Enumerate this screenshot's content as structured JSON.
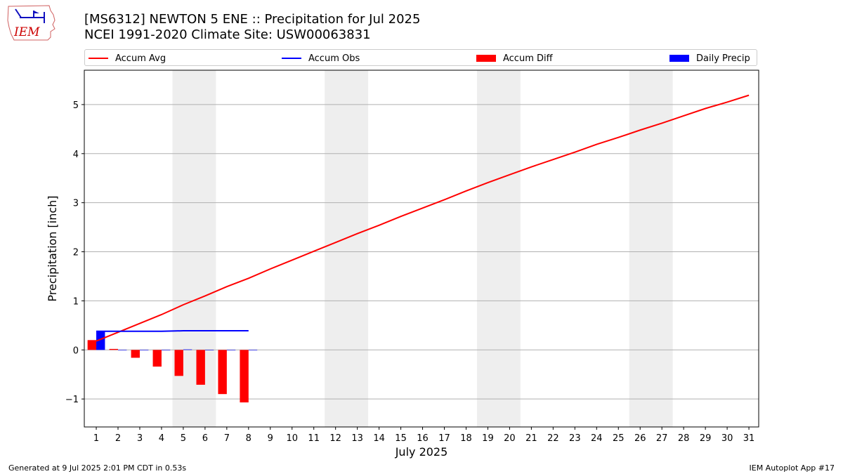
{
  "header": {
    "title_line1": "[MS6312] NEWTON 5 ENE :: Precipitation for Jul 2025",
    "title_line2": "NCEI 1991-2020 Climate Site: USW00063831"
  },
  "logo": {
    "text": "IEM",
    "icon": "iem-iowa-map-logo"
  },
  "legend": [
    {
      "label": "Accum Avg",
      "kind": "line",
      "color": "#ff0000"
    },
    {
      "label": "Accum Obs",
      "kind": "line",
      "color": "#0000ff"
    },
    {
      "label": "Accum Diff",
      "kind": "patch",
      "color": "#ff0000"
    },
    {
      "label": "Daily Precip",
      "kind": "patch",
      "color": "#0000ff"
    }
  ],
  "footer": {
    "left": "Generated at 9 Jul 2025 2:01 PM CDT in 0.53s",
    "right": "IEM Autoplot App #17"
  },
  "chart_data": {
    "type": "bar",
    "xlabel": "July 2025",
    "ylabel": "Precipitation [inch]",
    "xlim": [
      0.45,
      31.45
    ],
    "ylim": [
      -1.57,
      5.7
    ],
    "yticks": [
      -1,
      0,
      1,
      2,
      3,
      4,
      5
    ],
    "ytick_labels": [
      "−1",
      "0",
      "1",
      "2",
      "3",
      "4",
      "5"
    ],
    "xticks": [
      1,
      2,
      3,
      4,
      5,
      6,
      7,
      8,
      9,
      10,
      11,
      12,
      13,
      14,
      15,
      16,
      17,
      18,
      19,
      20,
      21,
      22,
      23,
      24,
      25,
      26,
      27,
      28,
      29,
      30,
      31
    ],
    "grid": "horizontal",
    "legend_position": "top",
    "weekend_shading": [
      [
        4.5,
        6.5
      ],
      [
        11.5,
        13.5
      ],
      [
        18.5,
        20.5
      ],
      [
        25.5,
        27.5
      ]
    ],
    "series": [
      {
        "name": "Accum Avg",
        "type": "line",
        "color": "#ff0000",
        "x": [
          1,
          2,
          3,
          4,
          5,
          6,
          7,
          8,
          9,
          10,
          11,
          12,
          13,
          14,
          15,
          16,
          17,
          18,
          19,
          20,
          21,
          22,
          23,
          24,
          25,
          26,
          27,
          28,
          29,
          30,
          31
        ],
        "values": [
          0.18,
          0.36,
          0.54,
          0.72,
          0.92,
          1.1,
          1.29,
          1.46,
          1.65,
          1.83,
          2.01,
          2.19,
          2.37,
          2.54,
          2.72,
          2.89,
          3.06,
          3.24,
          3.41,
          3.57,
          3.73,
          3.88,
          4.03,
          4.19,
          4.33,
          4.48,
          4.62,
          4.77,
          4.92,
          5.05,
          5.19
        ]
      },
      {
        "name": "Accum Obs",
        "type": "line",
        "color": "#0000ff",
        "x": [
          1,
          2,
          3,
          4,
          5,
          6,
          7,
          8
        ],
        "values": [
          0.38,
          0.38,
          0.38,
          0.38,
          0.39,
          0.39,
          0.39,
          0.39
        ]
      },
      {
        "name": "Accum Diff",
        "type": "bar",
        "color": "#ff0000",
        "x": [
          1,
          2,
          3,
          4,
          5,
          6,
          7,
          8
        ],
        "values": [
          0.2,
          0.02,
          -0.16,
          -0.34,
          -0.53,
          -0.71,
          -0.9,
          -1.07
        ]
      },
      {
        "name": "Daily Precip",
        "type": "bar",
        "color": "#0000ff",
        "x": [
          1,
          2,
          3,
          4,
          5,
          6,
          7,
          8
        ],
        "values": [
          0.38,
          0.0,
          0.0,
          0.0,
          0.01,
          0.0,
          0.0,
          0.0
        ]
      }
    ]
  }
}
